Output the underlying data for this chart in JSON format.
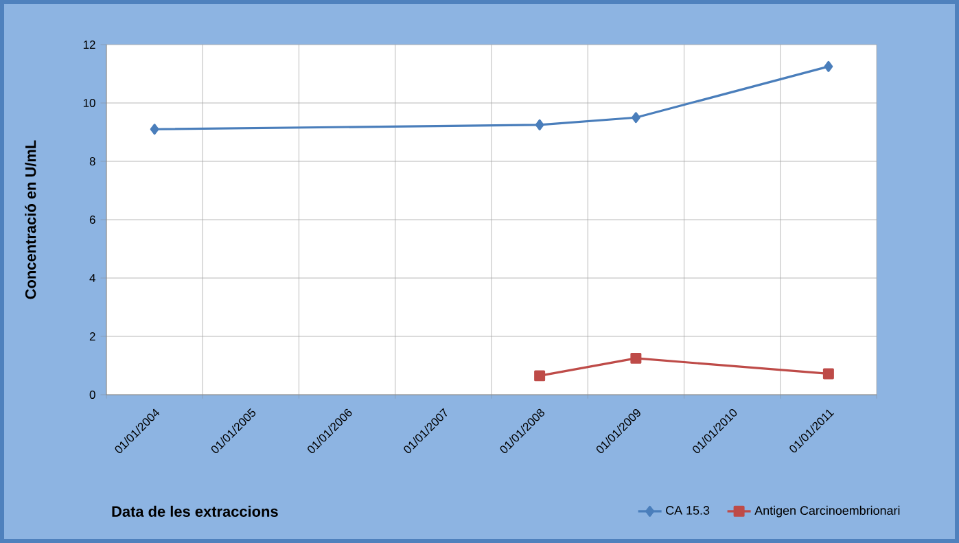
{
  "chart_data": {
    "type": "line",
    "xlabel": "Data de les extraccions",
    "ylabel": "Concentració en U/mL",
    "categories": [
      "01/01/2004",
      "01/01/2005",
      "01/01/2006",
      "01/01/2007",
      "01/01/2008",
      "01/01/2009",
      "01/01/2010",
      "01/01/2011"
    ],
    "series": [
      {
        "name": "CA 15.3",
        "color": "#4a7ebb",
        "marker": "diamond",
        "values": [
          9.1,
          null,
          null,
          null,
          9.25,
          9.5,
          null,
          11.25
        ]
      },
      {
        "name": "Antigen Carcinoembrionari",
        "color": "#be4b48",
        "marker": "square",
        "values": [
          null,
          null,
          null,
          null,
          0.65,
          1.25,
          null,
          0.72
        ]
      }
    ],
    "ylim": [
      0,
      12
    ],
    "yticks": [
      0,
      2,
      4,
      6,
      8,
      10,
      12
    ],
    "grid": true,
    "legend": "bottom right"
  }
}
